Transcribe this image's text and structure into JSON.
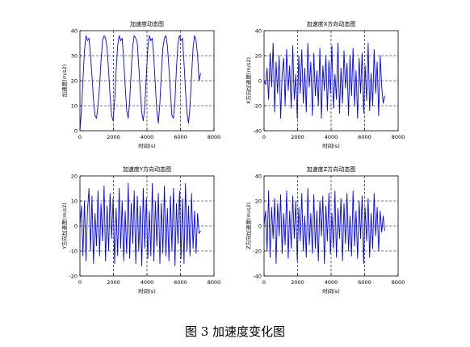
{
  "caption": "图 3  加速度变化图",
  "chart_data": [
    {
      "type": "line",
      "title": "加速度动态图",
      "xlabel": "时间(s)",
      "ylabel": "加速度(m/s2)",
      "xlim": [
        0,
        8000
      ],
      "ylim": [
        0,
        40
      ],
      "xticks": [
        0,
        2000,
        4000,
        6000,
        8000
      ],
      "yticks": [
        0,
        10,
        20,
        30,
        40
      ],
      "grid": true,
      "color": "#0000ff",
      "series": [
        {
          "x": [
            0,
            90,
            180,
            270,
            360,
            450,
            540,
            630,
            720,
            810,
            900,
            990,
            1080,
            1170,
            1260,
            1350,
            1440,
            1530,
            1620,
            1710,
            1800,
            1890,
            1980,
            2070,
            2160,
            2250,
            2340,
            2430,
            2520,
            2610,
            2700,
            2790,
            2880,
            2970,
            3060,
            3150,
            3240,
            3330,
            3420,
            3510,
            3600,
            3690,
            3780,
            3870,
            3960,
            4050,
            4140,
            4230,
            4320,
            4410,
            4500,
            4590,
            4680,
            4770,
            4860,
            4950,
            5040,
            5130,
            5220,
            5310,
            5400,
            5490,
            5580,
            5670,
            5760,
            5850,
            5940,
            6030,
            6120,
            6210,
            6300,
            6390,
            6480,
            6570,
            6660,
            6750,
            6840,
            6930,
            7020,
            7110,
            7200
          ],
          "y": [
            0,
            8,
            20,
            32,
            38,
            36,
            37,
            30,
            22,
            12,
            6,
            5,
            10,
            18,
            28,
            36,
            38,
            37,
            33,
            24,
            14,
            6,
            4,
            12,
            24,
            34,
            38,
            36,
            37,
            28,
            18,
            8,
            5,
            12,
            24,
            34,
            38,
            37,
            35,
            26,
            16,
            7,
            4,
            10,
            22,
            33,
            38,
            36,
            37,
            29,
            18,
            8,
            3,
            11,
            23,
            33,
            37,
            38,
            34,
            25,
            15,
            6,
            5,
            12,
            25,
            35,
            38,
            36,
            37,
            27,
            16,
            7,
            3,
            10,
            22,
            33,
            38,
            36,
            30,
            20,
            23
          ]
        }
      ]
    },
    {
      "type": "line",
      "title": "加速度X方向动态图",
      "xlabel": "时间(s)",
      "ylabel": "X方向加速度(m/s2)",
      "xlim": [
        0,
        8000
      ],
      "ylim": [
        -40,
        40
      ],
      "xticks": [
        0,
        2000,
        4000,
        6000,
        8000
      ],
      "yticks": [
        -40,
        -20,
        0,
        20,
        40
      ],
      "grid": true,
      "color": "#0000ff",
      "series": [
        {
          "x": [
            0,
            90,
            180,
            270,
            360,
            450,
            540,
            630,
            720,
            810,
            900,
            990,
            1080,
            1170,
            1260,
            1350,
            1440,
            1530,
            1620,
            1710,
            1800,
            1890,
            1980,
            2070,
            2160,
            2250,
            2340,
            2430,
            2520,
            2610,
            2700,
            2790,
            2880,
            2970,
            3060,
            3150,
            3240,
            3330,
            3420,
            3510,
            3600,
            3690,
            3780,
            3870,
            3960,
            4050,
            4140,
            4230,
            4320,
            4410,
            4500,
            4590,
            4680,
            4770,
            4860,
            4950,
            5040,
            5130,
            5220,
            5310,
            5400,
            5490,
            5580,
            5670,
            5760,
            5850,
            5940,
            6030,
            6120,
            6210,
            6300,
            6390,
            6480,
            6570,
            6660,
            6750,
            6840,
            6930,
            7020,
            7110,
            7200
          ],
          "y": [
            0,
            -3,
            10,
            -15,
            22,
            -5,
            30,
            -25,
            15,
            -10,
            20,
            -30,
            5,
            18,
            -20,
            25,
            -8,
            12,
            -22,
            28,
            -15,
            5,
            -30,
            20,
            -10,
            25,
            -18,
            10,
            -25,
            30,
            -5,
            15,
            -28,
            22,
            -12,
            8,
            -20,
            26,
            -30,
            12,
            -8,
            20,
            -24,
            16,
            -10,
            28,
            -22,
            5,
            -15,
            30,
            -26,
            10,
            -18,
            24,
            -6,
            14,
            -28,
            20,
            -12,
            26,
            -20,
            8,
            -30,
            18,
            -10,
            22,
            -26,
            12,
            -16,
            30,
            -24,
            6,
            -20,
            25,
            -10,
            15,
            -28,
            20,
            -5,
            -18,
            -12
          ]
        }
      ]
    },
    {
      "type": "line",
      "title": "加速度Y方向动态图",
      "xlabel": "时间(s)",
      "ylabel": "Y方向加速度(m/s2)",
      "xlim": [
        0,
        8000
      ],
      "ylim": [
        -20,
        20
      ],
      "xticks": [
        0,
        2000,
        4000,
        6000,
        8000
      ],
      "yticks": [
        -20,
        -10,
        0,
        10,
        20
      ],
      "grid": true,
      "color": "#0000ff",
      "series": [
        {
          "x": [
            0,
            90,
            180,
            270,
            360,
            450,
            540,
            630,
            720,
            810,
            900,
            990,
            1080,
            1170,
            1260,
            1350,
            1440,
            1530,
            1620,
            1710,
            1800,
            1890,
            1980,
            2070,
            2160,
            2250,
            2340,
            2430,
            2520,
            2610,
            2700,
            2790,
            2880,
            2970,
            3060,
            3150,
            3240,
            3330,
            3420,
            3510,
            3600,
            3690,
            3780,
            3870,
            3960,
            4050,
            4140,
            4230,
            4320,
            4410,
            4500,
            4590,
            4680,
            4770,
            4860,
            4950,
            5040,
            5130,
            5220,
            5310,
            5400,
            5490,
            5580,
            5670,
            5760,
            5850,
            5940,
            6030,
            6120,
            6210,
            6300,
            6390,
            6480,
            6570,
            6660,
            6750,
            6840,
            6930,
            7020,
            7110,
            7200
          ],
          "y": [
            0,
            8,
            -12,
            10,
            -14,
            6,
            15,
            -10,
            12,
            -15,
            5,
            -8,
            14,
            -12,
            9,
            -6,
            16,
            -14,
            8,
            -10,
            13,
            -5,
            11,
            -15,
            7,
            -12,
            15,
            -9,
            10,
            -14,
            6,
            -11,
            17,
            -13,
            9,
            -7,
            14,
            -15,
            12,
            -10,
            8,
            -16,
            15,
            -9,
            11,
            -13,
            6,
            -12,
            17,
            -14,
            10,
            -8,
            13,
            -15,
            9,
            -11,
            16,
            -12,
            7,
            -14,
            12,
            -10,
            15,
            -16,
            9,
            -7,
            14,
            -13,
            11,
            -15,
            17,
            -10,
            8,
            -12,
            13,
            -9,
            6,
            -11,
            5,
            -3,
            -2
          ]
        }
      ]
    },
    {
      "type": "line",
      "title": "加速度Z方向动态图",
      "xlabel": "时间(s)",
      "ylabel": "Z方向加速度(m/s2)",
      "xlim": [
        0,
        8000
      ],
      "ylim": [
        -40,
        40
      ],
      "xticks": [
        0,
        2000,
        4000,
        6000,
        8000
      ],
      "yticks": [
        -40,
        -20,
        0,
        20,
        40
      ],
      "grid": true,
      "color": "#0000ff",
      "series": [
        {
          "x": [
            0,
            90,
            180,
            270,
            360,
            450,
            540,
            630,
            720,
            810,
            900,
            990,
            1080,
            1170,
            1260,
            1350,
            1440,
            1530,
            1620,
            1710,
            1800,
            1890,
            1980,
            2070,
            2160,
            2250,
            2340,
            2430,
            2520,
            2610,
            2700,
            2790,
            2880,
            2970,
            3060,
            3150,
            3240,
            3330,
            3420,
            3510,
            3600,
            3690,
            3780,
            3870,
            3960,
            4050,
            4140,
            4230,
            4320,
            4410,
            4500,
            4590,
            4680,
            4770,
            4860,
            4950,
            5040,
            5130,
            5220,
            5310,
            5400,
            5490,
            5580,
            5670,
            5760,
            5850,
            5940,
            6030,
            6120,
            6210,
            6300,
            6390,
            6480,
            6570,
            6660,
            6750,
            6840,
            6930,
            7020,
            7110,
            7200
          ],
          "y": [
            0,
            12,
            -20,
            28,
            -25,
            15,
            -10,
            22,
            -30,
            18,
            -8,
            25,
            -22,
            10,
            -15,
            28,
            -26,
            12,
            -18,
            24,
            -10,
            20,
            -28,
            15,
            -12,
            26,
            -20,
            8,
            -25,
            30,
            -15,
            10,
            -22,
            25,
            -18,
            12,
            -28,
            20,
            -8,
            24,
            -30,
            16,
            -12,
            26,
            -22,
            10,
            -18,
            28,
            -25,
            14,
            -10,
            22,
            -28,
            18,
            -14,
            26,
            -20,
            8,
            -24,
            28,
            -16,
            12,
            -26,
            20,
            -10,
            24,
            -30,
            15,
            -12,
            22,
            -25,
            10,
            -18,
            26,
            -8,
            15,
            -20,
            12,
            -5,
            8,
            -4
          ]
        }
      ]
    }
  ]
}
